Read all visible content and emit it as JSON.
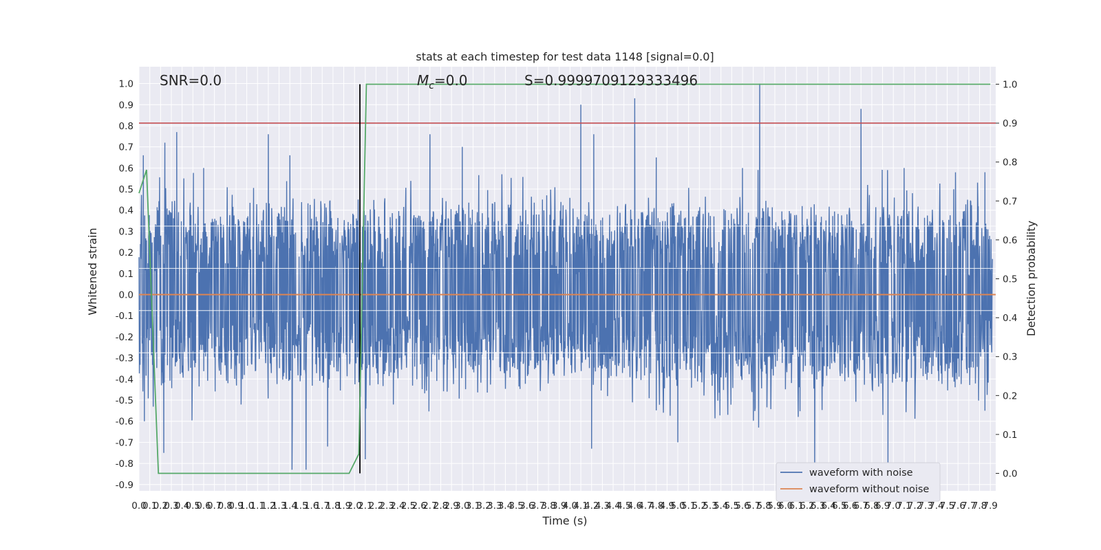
{
  "chart_data": {
    "type": "line",
    "title": "stats at each timestep for test data 1148 [signal=0.0]",
    "xlabel": "Time (s)",
    "ylabel": "Whitened strain",
    "y2label": "Detection probability",
    "xlim": [
      0.0,
      7.95
    ],
    "ylim": [
      -0.93,
      1.08
    ],
    "y2lim": [
      -0.045,
      1.045
    ],
    "x_ticks": [
      "0.0",
      "0.1",
      "0.2",
      "0.3",
      "0.4",
      "0.5",
      "0.6",
      "0.7",
      "0.8",
      "0.9",
      "1.0",
      "1.1",
      "1.2",
      "1.3",
      "1.4",
      "1.5",
      "1.6",
      "1.7",
      "1.8",
      "1.9",
      "2.0",
      "2.1",
      "2.2",
      "2.3",
      "2.4",
      "2.5",
      "2.6",
      "2.7",
      "2.8",
      "2.9",
      "3.0",
      "3.1",
      "3.2",
      "3.3",
      "3.4",
      "3.5",
      "3.6",
      "3.7",
      "3.8",
      "3.9",
      "4.0",
      "4.1",
      "4.2",
      "4.3",
      "4.4",
      "4.5",
      "4.6",
      "4.7",
      "4.8",
      "4.9",
      "5.0",
      "5.1",
      "5.2",
      "5.3",
      "5.4",
      "5.5",
      "5.6",
      "5.7",
      "5.8",
      "5.9",
      "6.0",
      "6.1",
      "6.2",
      "6.3",
      "6.4",
      "6.5",
      "6.6",
      "6.7",
      "6.8",
      "6.9",
      "7.0",
      "7.1",
      "7.2",
      "7.3",
      "7.4",
      "7.5",
      "7.6",
      "7.7",
      "7.8",
      "7.9"
    ],
    "y_ticks": [
      "1.0",
      "0.9",
      "0.8",
      "0.7",
      "0.6",
      "0.5",
      "0.4",
      "0.3",
      "0.2",
      "0.1",
      "0.0",
      "-0.1",
      "-0.2",
      "-0.3",
      "-0.4",
      "-0.5",
      "-0.6",
      "-0.7",
      "-0.8",
      "-0.9"
    ],
    "y2_ticks": [
      "1.0",
      "0.9",
      "0.8",
      "0.7",
      "0.6",
      "0.5",
      "0.4",
      "0.3",
      "0.2",
      "0.1",
      "0.0"
    ],
    "series": [
      {
        "name": "waveform with noise",
        "color": "#4c72b0",
        "axis": "left",
        "envelope": {
          "typical_max": 0.35,
          "typical_min": -0.35,
          "peaks": [
            [
              0.04,
              0.66
            ],
            [
              0.24,
              0.72
            ],
            [
              0.35,
              0.77
            ],
            [
              0.6,
              0.6
            ],
            [
              1.2,
              0.76
            ],
            [
              1.4,
              0.66
            ],
            [
              2.7,
              0.76
            ],
            [
              3.0,
              0.7
            ],
            [
              4.1,
              0.9
            ],
            [
              4.22,
              0.76
            ],
            [
              4.6,
              0.93
            ],
            [
              4.8,
              0.65
            ],
            [
              5.6,
              0.6
            ],
            [
              5.76,
              1.0
            ],
            [
              6.7,
              0.88
            ],
            [
              7.1,
              0.6
            ],
            [
              7.85,
              0.58
            ]
          ],
          "troughs": [
            [
              0.05,
              -0.6
            ],
            [
              0.23,
              -0.75
            ],
            [
              1.42,
              -0.83
            ],
            [
              1.55,
              -0.83
            ],
            [
              1.75,
              -0.72
            ],
            [
              2.1,
              -0.78
            ],
            [
              4.2,
              -0.73
            ],
            [
              5.0,
              -0.7
            ],
            [
              5.75,
              -0.63
            ],
            [
              6.27,
              -0.85
            ],
            [
              6.95,
              -0.85
            ],
            [
              7.85,
              -0.55
            ]
          ]
        }
      },
      {
        "name": "waveform without noise",
        "color": "#dd8452",
        "axis": "left",
        "x": [
          0.0,
          7.95
        ],
        "y": [
          0.0,
          0.0
        ]
      },
      {
        "name": "",
        "color": "#55a868",
        "axis": "right",
        "x": [
          0.0,
          0.07,
          0.18,
          0.25,
          1.95,
          2.04,
          2.11,
          7.9
        ],
        "y": [
          0.72,
          0.78,
          0.0,
          0.0,
          0.0,
          0.05,
          1.0,
          1.0
        ]
      }
    ],
    "threshold": {
      "value": 0.9,
      "axis": "right",
      "color": "#c44e52"
    },
    "vline": {
      "x": 2.05,
      "color": "#000000"
    },
    "grid": true,
    "legend_position": "lower-right"
  },
  "annotations": {
    "snr": "SNR=0.0",
    "mc": "=0.0",
    "mc_symbol": "M",
    "mc_sub": "c",
    "s": "S=0.9999709129333496"
  },
  "legend": [
    {
      "label": "waveform with noise",
      "color": "#4c72b0"
    },
    {
      "label": "waveform without noise",
      "color": "#dd8452"
    }
  ]
}
